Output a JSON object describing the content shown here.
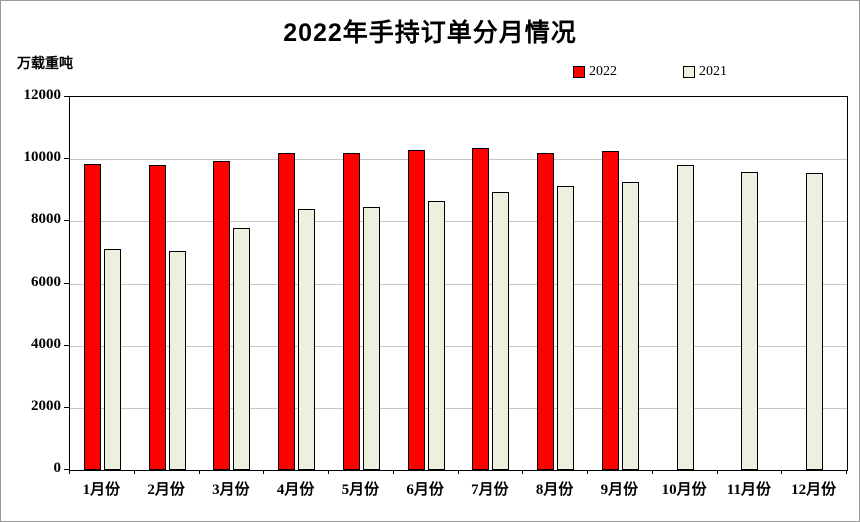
{
  "title": "2022年手持订单分月情况",
  "y_axis_unit": "万载重吨",
  "chart_data": {
    "type": "bar",
    "title": "2022年手持订单分月情况",
    "ylabel": "万载重吨",
    "categories": [
      "1月份",
      "2月份",
      "3月份",
      "4月份",
      "5月份",
      "6月份",
      "7月份",
      "8月份",
      "9月份",
      "10月份",
      "11月份",
      "12月份"
    ],
    "series": [
      {
        "name": "2022",
        "color": "#FF0000",
        "values": [
          9850,
          9800,
          9950,
          10200,
          10200,
          10300,
          10350,
          10200,
          10250,
          null,
          null,
          null
        ]
      },
      {
        "name": "2021",
        "color": "#EBF1DE",
        "values": [
          7100,
          7050,
          7800,
          8400,
          8450,
          8650,
          8950,
          9150,
          9250,
          9800,
          9600,
          9550
        ]
      }
    ],
    "ylim": [
      0,
      12000
    ],
    "ytick_step": 2000,
    "grid": true,
    "legend_position": "top-right"
  },
  "colors": {
    "grid": "#c6c6c6",
    "bar_border": "#000000",
    "background": "#ffffff"
  }
}
